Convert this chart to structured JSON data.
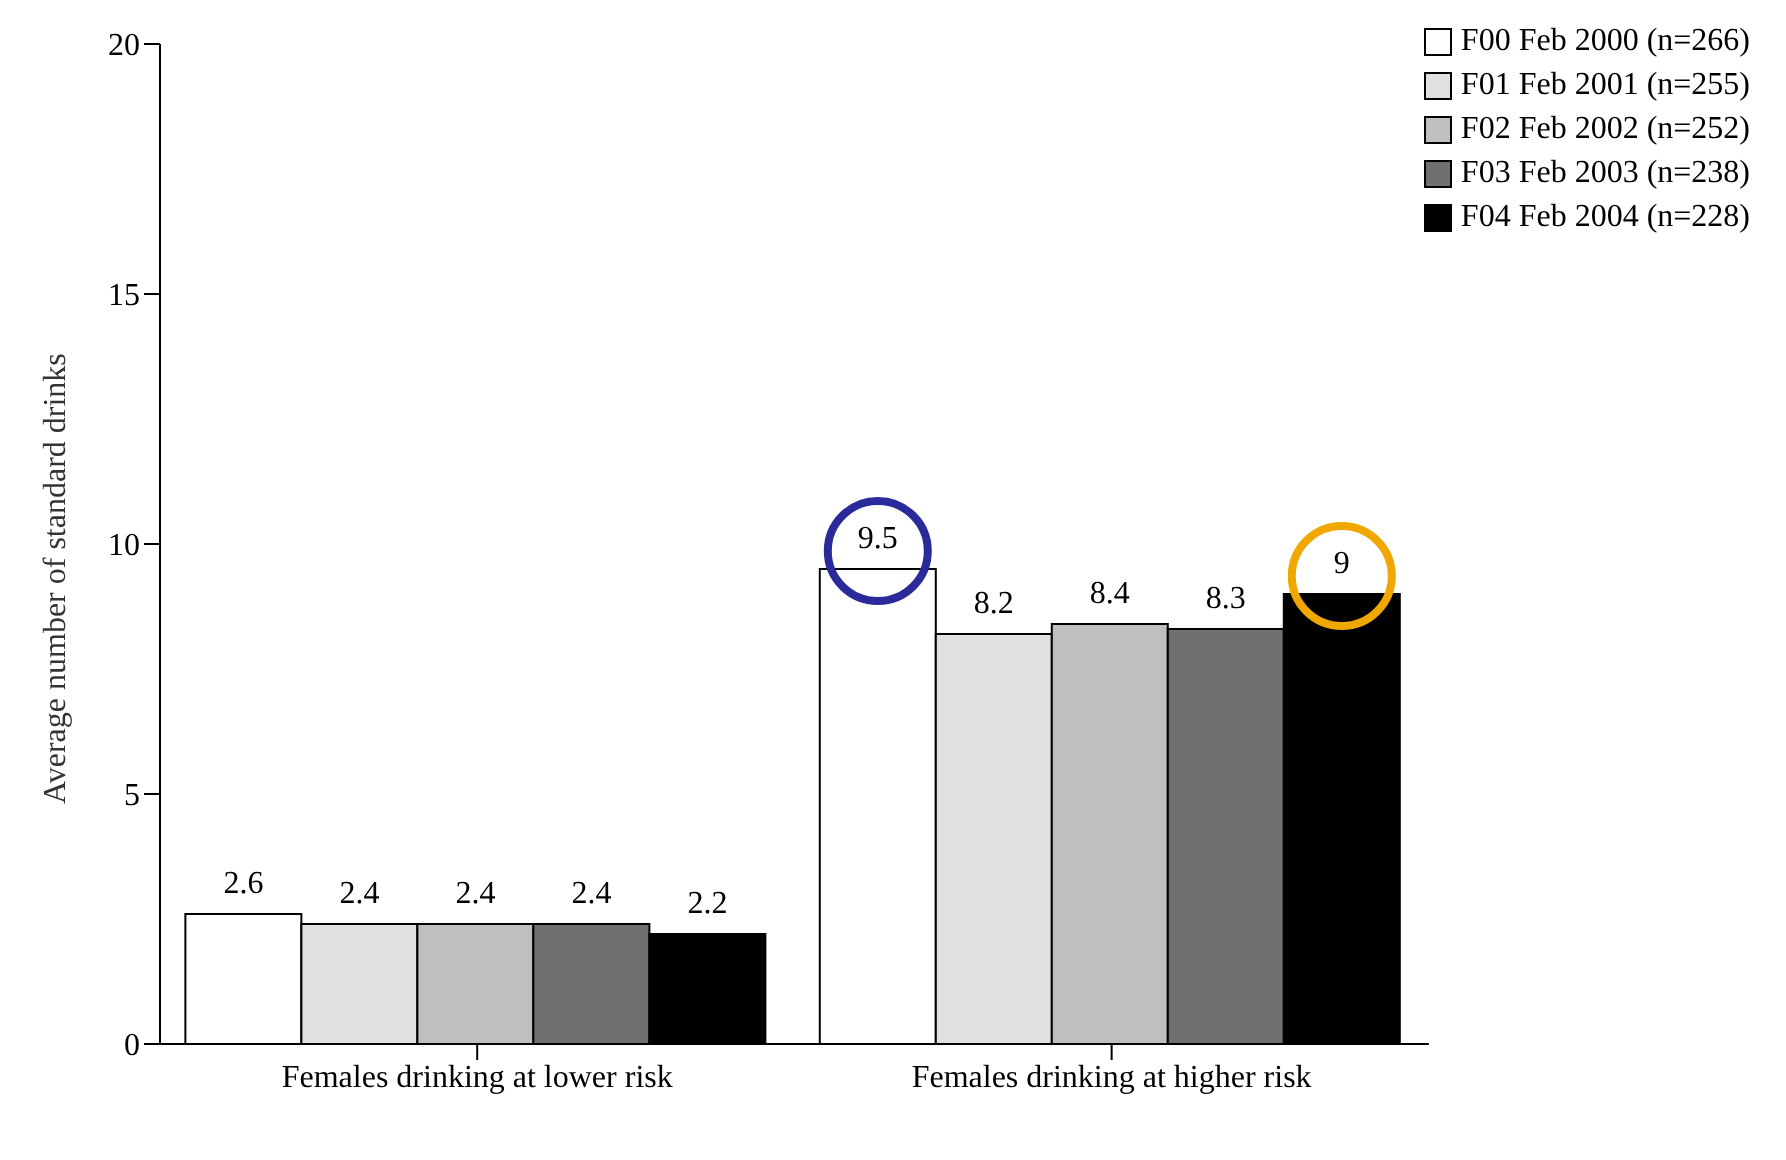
{
  "chart_data": {
    "type": "bar",
    "ylabel": "Average number of standard drinks",
    "categories": [
      "Females drinking at lower risk",
      "Females drinking at higher risk"
    ],
    "series": [
      {
        "name": "F00 Feb 2000 (n=266)",
        "color": "#ffffff",
        "values": [
          2.6,
          9.5
        ]
      },
      {
        "name": "F01 Feb 2001 (n=255)",
        "color": "#e0e0e0",
        "values": [
          2.4,
          8.2
        ]
      },
      {
        "name": "F02 Feb 2002 (n=252)",
        "color": "#bfbfbf",
        "values": [
          2.4,
          8.4
        ]
      },
      {
        "name": "F03 Feb 2003 (n=238)",
        "color": "#707070",
        "values": [
          2.4,
          8.3
        ]
      },
      {
        "name": "F04 Feb 2004 (n=228)",
        "color": "#000000",
        "values": [
          2.2,
          9
        ]
      }
    ],
    "ylim": [
      0,
      20
    ],
    "yticks": [
      0,
      5,
      10,
      15,
      20
    ],
    "grid": false,
    "legend": "top right",
    "data_labels": true
  }
}
